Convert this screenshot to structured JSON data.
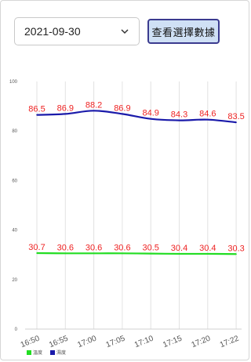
{
  "controls": {
    "date_value": "2021-09-30",
    "query_button_label": "查看選擇數據"
  },
  "chart_data": {
    "type": "line",
    "title": "",
    "xlabel": "",
    "ylabel": "",
    "x": [
      "16:50",
      "16:55",
      "17:00",
      "17:05",
      "17:10",
      "17:15",
      "17:20",
      "17:22"
    ],
    "ylim": [
      0,
      100
    ],
    "yticks": [
      0,
      20,
      40,
      60,
      80,
      100
    ],
    "grid": {
      "vertical": true,
      "horizontal": false
    },
    "legend": "bottom-left",
    "series": [
      {
        "name": "溫度",
        "color": "#22dd22",
        "values": [
          30.7,
          30.6,
          30.6,
          30.6,
          30.5,
          30.4,
          30.4,
          30.3
        ],
        "labels": [
          "30.7",
          "30.6",
          "30.6",
          "30.6",
          "30.5",
          "30.4",
          "30.4",
          "30.3"
        ]
      },
      {
        "name": "濕度",
        "color": "#1a1aaa",
        "values": [
          86.5,
          86.9,
          88.2,
          86.9,
          84.9,
          84.3,
          84.6,
          83.5
        ],
        "labels": [
          "86.5",
          "86.9",
          "88.2",
          "86.9",
          "84.9",
          "84.3",
          "84.6",
          "83.5"
        ]
      }
    ],
    "data_label_color": "#ee2222"
  }
}
